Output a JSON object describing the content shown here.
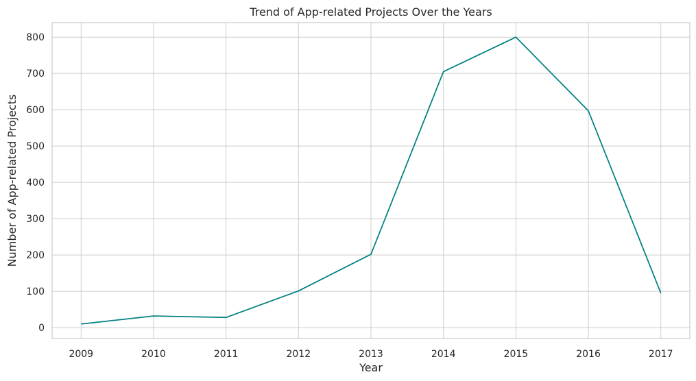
{
  "chart_data": {
    "type": "line",
    "title": "Trend of App-related Projects Over the Years",
    "xlabel": "Year",
    "ylabel": "Number of App-related Projects",
    "x": [
      2009,
      2010,
      2011,
      2012,
      2013,
      2014,
      2015,
      2016,
      2017
    ],
    "series": [
      {
        "values": [
          10,
          32,
          28,
          101,
          202,
          705,
          800,
          597,
          95
        ],
        "color": "#008080"
      }
    ],
    "xlim": [
      2008.6,
      2017.4
    ],
    "ylim": [
      -30,
      840
    ],
    "yticks": [
      0,
      100,
      200,
      300,
      400,
      500,
      600,
      700,
      800
    ],
    "xticks": [
      2009,
      2010,
      2011,
      2012,
      2013,
      2014,
      2015,
      2016,
      2017
    ],
    "grid": true,
    "legend": false
  }
}
